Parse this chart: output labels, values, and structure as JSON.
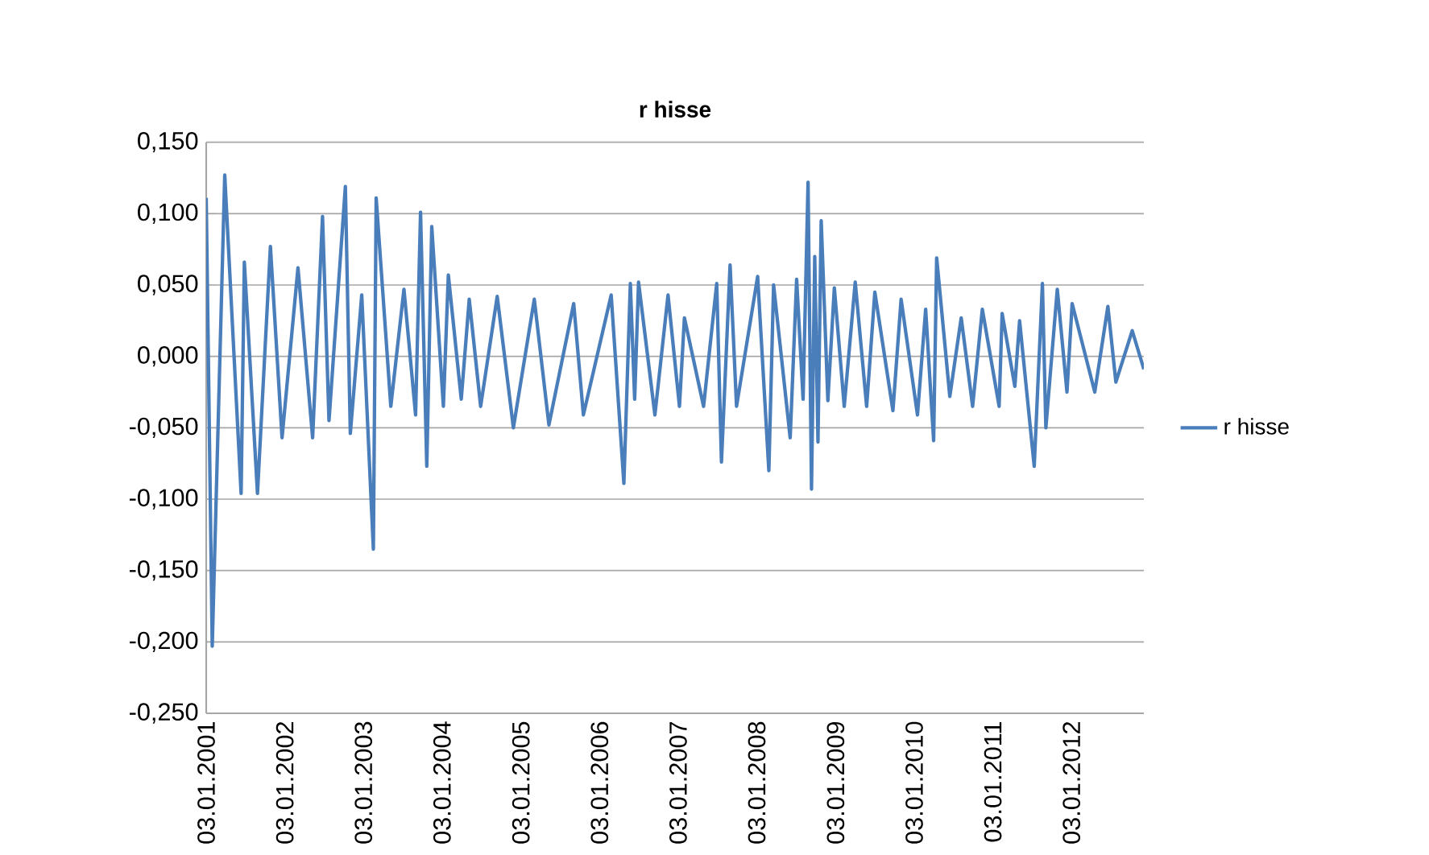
{
  "chart_data": {
    "type": "line",
    "title": "r hisse",
    "x": [
      "2001-01-03",
      "2001-01-31",
      "2001-03-30",
      "2001-06-14",
      "2001-06-29",
      "2001-08-29",
      "2001-10-28",
      "2001-12-21",
      "2002-03-05",
      "2002-05-12",
      "2002-06-27",
      "2002-07-27",
      "2002-10-11",
      "2002-11-03",
      "2002-12-26",
      "2003-02-18",
      "2003-03-03",
      "2003-05-10",
      "2003-07-10",
      "2003-09-02",
      "2003-09-25",
      "2003-10-24",
      "2003-11-16",
      "2004-01-09",
      "2004-02-01",
      "2004-04-01",
      "2004-05-08",
      "2004-06-30",
      "2004-09-15",
      "2004-11-29",
      "2005-03-06",
      "2005-05-13",
      "2005-09-05",
      "2005-10-20",
      "2006-02-26",
      "2006-04-26",
      "2006-05-26",
      "2006-06-15",
      "2006-07-03",
      "2006-09-17",
      "2006-11-17",
      "2007-01-09",
      "2007-02-01",
      "2007-05-01",
      "2007-07-01",
      "2007-07-23",
      "2007-09-01",
      "2007-10-01",
      "2008-01-07",
      "2008-02-28",
      "2008-03-21",
      "2008-06-06",
      "2008-07-06",
      "2008-08-05",
      "2008-08-28",
      "2008-09-13",
      "2008-09-28",
      "2008-10-13",
      "2008-10-28",
      "2008-11-28",
      "2008-12-28",
      "2009-02-12",
      "2009-04-04",
      "2009-05-27",
      "2009-07-04",
      "2009-09-26",
      "2009-11-03",
      "2010-01-18",
      "2010-02-25",
      "2010-04-03",
      "2010-04-17",
      "2010-06-17",
      "2010-08-09",
      "2010-10-01",
      "2010-11-15",
      "2011-02-01",
      "2011-02-15",
      "2011-04-15",
      "2011-05-07",
      "2011-07-14",
      "2011-08-21",
      "2011-09-06",
      "2011-10-29",
      "2011-12-13",
      "2012-01-06",
      "2012-04-20",
      "2012-06-20",
      "2012-07-27",
      "2012-10-11",
      "2012-12-04"
    ],
    "series": [
      {
        "name": "r hisse",
        "color": "#4a7ebb",
        "values": [
          0.111,
          -0.203,
          0.127,
          -0.096,
          0.066,
          -0.096,
          0.077,
          -0.057,
          0.062,
          -0.057,
          0.098,
          -0.045,
          0.119,
          -0.054,
          0.043,
          -0.135,
          0.111,
          -0.035,
          0.047,
          -0.041,
          0.101,
          -0.077,
          0.091,
          -0.035,
          0.057,
          -0.03,
          0.04,
          -0.035,
          0.042,
          -0.05,
          0.04,
          -0.048,
          0.037,
          -0.041,
          0.043,
          -0.089,
          0.051,
          -0.03,
          0.052,
          -0.041,
          0.043,
          -0.035,
          0.027,
          -0.035,
          0.051,
          -0.074,
          0.064,
          -0.035,
          0.056,
          -0.08,
          0.05,
          -0.057,
          0.054,
          -0.03,
          0.122,
          -0.093,
          0.07,
          -0.06,
          0.095,
          -0.031,
          0.048,
          -0.035,
          0.052,
          -0.035,
          0.045,
          -0.038,
          0.04,
          -0.041,
          0.033,
          -0.059,
          0.069,
          -0.028,
          0.027,
          -0.035,
          0.033,
          -0.035,
          0.03,
          -0.021,
          0.025,
          -0.077,
          0.051,
          -0.05,
          0.047,
          -0.025,
          0.037,
          -0.025,
          0.035,
          -0.018,
          0.018,
          -0.009
        ]
      }
    ],
    "xlim": [
      "2001-01-03",
      "2012-12-04"
    ],
    "xticks": [
      {
        "value": "2001-01-03",
        "label": "03.01.2001"
      },
      {
        "value": "2002-01-03",
        "label": "03.01.2002"
      },
      {
        "value": "2003-01-03",
        "label": "03.01.2003"
      },
      {
        "value": "2004-01-03",
        "label": "03.01.2004"
      },
      {
        "value": "2005-01-03",
        "label": "03.01.2005"
      },
      {
        "value": "2006-01-03",
        "label": "03.01.2006"
      },
      {
        "value": "2007-01-03",
        "label": "03.01.2007"
      },
      {
        "value": "2008-01-03",
        "label": "03.01.2008"
      },
      {
        "value": "2009-01-03",
        "label": "03.01.2009"
      },
      {
        "value": "2010-01-03",
        "label": "03.01.2010"
      },
      {
        "value": "2011-01-03",
        "label": "03.01.2011"
      },
      {
        "value": "2012-01-03",
        "label": "03.01.2012"
      }
    ],
    "ylim": [
      -0.25,
      0.15
    ],
    "yticks": [
      {
        "value": -0.25,
        "label": "-0,250"
      },
      {
        "value": -0.2,
        "label": "-0,200"
      },
      {
        "value": -0.15,
        "label": "-0,150"
      },
      {
        "value": -0.1,
        "label": "-0,100"
      },
      {
        "value": -0.05,
        "label": "-0,050"
      },
      {
        "value": 0,
        "label": "0,000"
      },
      {
        "value": 0.05,
        "label": "0,050"
      },
      {
        "value": 0.1,
        "label": "0,100"
      },
      {
        "value": 0.15,
        "label": "0,150"
      }
    ],
    "grid": "y",
    "legend": "right"
  }
}
